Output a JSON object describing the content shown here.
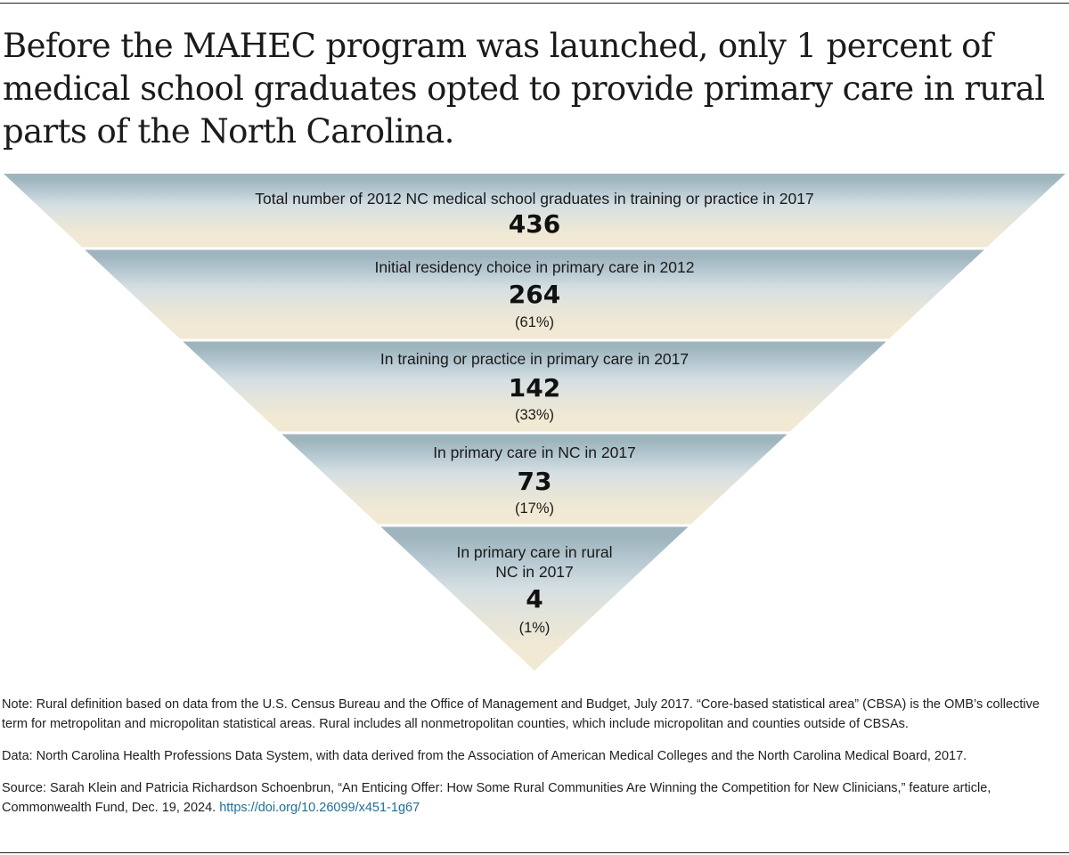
{
  "title": "Before the MAHEC program was launched, only 1 percent of medical school graduates opted to provide primary care in rural parts of the North Carolina.",
  "chart_data": {
    "type": "funnel",
    "stages": [
      {
        "label_lines": [
          "Total number of 2012 NC medical school graduates in training or practice in 2017"
        ],
        "value": 436,
        "value_label": "436",
        "percent": "",
        "color": "#9fb5bd"
      },
      {
        "label_lines": [
          "Initial residency choice in primary care in 2012"
        ],
        "value": 264,
        "value_label": "264",
        "percent": "(61%)",
        "color": "#b7c9d2"
      },
      {
        "label_lines": [
          "In training or practice in primary care in 2017"
        ],
        "value": 142,
        "value_label": "142",
        "percent": "(33%)",
        "color": "#d5dfe3"
      },
      {
        "label_lines": [
          "In primary care in NC in 2017"
        ],
        "value": 73,
        "value_label": "73",
        "percent": "(17%)",
        "color": "#e4e4db"
      },
      {
        "label_lines": [
          "In primary care in rural",
          "NC in 2017"
        ],
        "value": 4,
        "value_label": "4",
        "percent": "(1%)",
        "color": "#f1e9d3"
      }
    ]
  },
  "footer": {
    "note": "Note: Rural definition based on data from the U.S. Census Bureau and the Office of Management and Budget, July 2017. “Core-based statistical area” (CBSA) is the OMB’s collective term for metropolitan and micropolitan statistical areas. Rural includes all nonmetropolitan counties, which include micropolitan and counties outside of CBSAs.",
    "data": "Data: North Carolina Health Professions Data System, with data derived from the Association of American Medical Colleges and the North Carolina Medical Board, 2017.",
    "source": "Source: Sarah Klein and Patricia Richardson Schoenbrun, “An Enticing Offer: How Some Rural Communities Are Winning the Competition for New Clinicians,” feature article, Commonwealth Fund, Dec. 19, 2024. ",
    "source_link": "https://doi.org/10.26099/x451-1g67"
  }
}
